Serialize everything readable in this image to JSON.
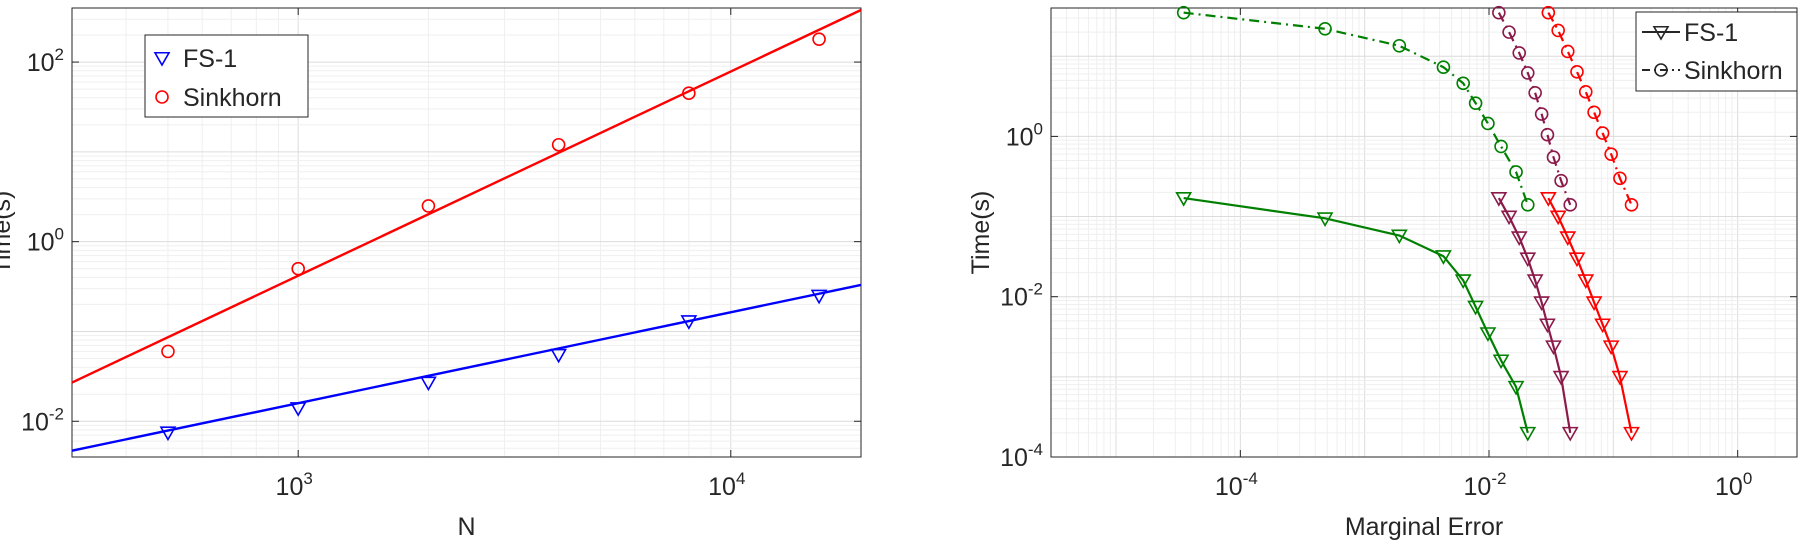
{
  "chart_data": [
    {
      "type": "scatter",
      "xlabel": "N",
      "ylabel": "Time(s)",
      "x_scale": "log",
      "y_scale": "log",
      "xlim": [
        300,
        20000
      ],
      "ylim": [
        0.004,
        400
      ],
      "xticks": [
        {
          "base": "10",
          "exp": "3",
          "value": 1000
        },
        {
          "base": "10",
          "exp": "4",
          "value": 10000
        }
      ],
      "yticks": [
        {
          "base": "10",
          "exp": "-2",
          "value": 0.01
        },
        {
          "base": "10",
          "exp": "0",
          "value": 1
        },
        {
          "base": "10",
          "exp": "2",
          "value": 100
        }
      ],
      "grid": true,
      "legend_position": "top-left",
      "series": [
        {
          "name": "FS-1",
          "color": "#0000ff",
          "marker": "triangle-down",
          "x": [
            500,
            1000,
            2000,
            4000,
            8000,
            16000
          ],
          "y": [
            0.0075,
            0.014,
            0.027,
            0.055,
            0.13,
            0.25
          ],
          "fit": {
            "x": [
              300,
              20000
            ],
            "y": [
              0.0047,
              0.33
            ]
          }
        },
        {
          "name": "Sinkhorn",
          "color": "#ff0000",
          "marker": "circle",
          "x": [
            500,
            1000,
            2000,
            4000,
            8000,
            16000
          ],
          "y": [
            0.06,
            0.5,
            2.5,
            12,
            45,
            180
          ],
          "fit": {
            "x": [
              300,
              20000
            ],
            "y": [
              0.027,
              380
            ]
          }
        }
      ]
    },
    {
      "type": "line",
      "xlabel": "Marginal Error",
      "ylabel": "Time(s)",
      "x_scale": "log",
      "y_scale": "log",
      "xlim": [
        3e-06,
        3
      ],
      "ylim": [
        0.0001,
        40
      ],
      "xticks": [
        {
          "base": "10",
          "exp": "-4",
          "value": 0.0001
        },
        {
          "base": "10",
          "exp": "-2",
          "value": 0.01
        },
        {
          "base": "10",
          "exp": "0",
          "value": 1
        }
      ],
      "yticks": [
        {
          "base": "10",
          "exp": "-4",
          "value": 0.0001
        },
        {
          "base": "10",
          "exp": "-2",
          "value": 0.01
        },
        {
          "base": "10",
          "exp": "0",
          "value": 1
        }
      ],
      "grid": true,
      "legend_position": "top-right",
      "legend": [
        {
          "name": "FS-1",
          "marker": "triangle-down",
          "line": "solid"
        },
        {
          "name": "Sinkhorn",
          "marker": "circle",
          "line": "dash-dot"
        }
      ],
      "series": [
        {
          "method": "Sinkhorn",
          "color": "#008000",
          "marker": "circle",
          "line": "dash-dot",
          "x": [
            3.5e-05,
            0.00048,
            0.0019,
            0.0043,
            0.0062,
            0.0078,
            0.0098,
            0.0125,
            0.0165,
            0.0205
          ],
          "y": [
            35,
            22,
            13.5,
            7.3,
            4.6,
            2.6,
            1.45,
            0.75,
            0.36,
            0.14
          ]
        },
        {
          "method": "FS-1",
          "color": "#008000",
          "marker": "triangle-down",
          "line": "solid",
          "x": [
            3.5e-05,
            0.00048,
            0.0019,
            0.0043,
            0.0062,
            0.0078,
            0.0098,
            0.0125,
            0.0165,
            0.0205
          ],
          "y": [
            0.17,
            0.095,
            0.058,
            0.032,
            0.016,
            0.0075,
            0.0035,
            0.0016,
            0.00075,
            0.0002
          ]
        },
        {
          "method": "Sinkhorn",
          "color": "#8b1a4a",
          "marker": "circle",
          "line": "dash-dot",
          "x": [
            0.012,
            0.0145,
            0.0175,
            0.0205,
            0.0235,
            0.0265,
            0.0295,
            0.033,
            0.038,
            0.045
          ],
          "y": [
            35,
            20,
            11,
            6.2,
            3.5,
            1.9,
            1.05,
            0.55,
            0.28,
            0.14
          ]
        },
        {
          "method": "FS-1",
          "color": "#8b1a4a",
          "marker": "triangle-down",
          "line": "solid",
          "x": [
            0.012,
            0.0145,
            0.0175,
            0.0205,
            0.0235,
            0.0265,
            0.0295,
            0.033,
            0.038,
            0.045
          ],
          "y": [
            0.17,
            0.1,
            0.055,
            0.03,
            0.016,
            0.0085,
            0.0045,
            0.0024,
            0.001,
            0.0002
          ]
        },
        {
          "method": "Sinkhorn",
          "color": "#ff0000",
          "marker": "circle",
          "line": "dash-dot",
          "x": [
            0.03,
            0.036,
            0.043,
            0.051,
            0.06,
            0.07,
            0.082,
            0.096,
            0.113,
            0.14
          ],
          "y": [
            35,
            21,
            11.5,
            6.4,
            3.6,
            2,
            1.1,
            0.6,
            0.3,
            0.14
          ]
        },
        {
          "method": "FS-1",
          "color": "#ff0000",
          "marker": "triangle-down",
          "line": "solid",
          "x": [
            0.03,
            0.036,
            0.043,
            0.051,
            0.06,
            0.07,
            0.082,
            0.096,
            0.113,
            0.14
          ],
          "y": [
            0.17,
            0.1,
            0.055,
            0.03,
            0.016,
            0.0085,
            0.0045,
            0.0024,
            0.001,
            0.0002
          ]
        }
      ]
    }
  ]
}
